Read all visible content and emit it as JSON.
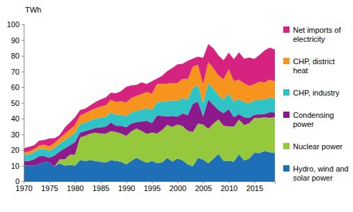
{
  "chart_data": {
    "type": "area",
    "stacked": true,
    "ylabel": "TWh",
    "legend": "right",
    "grid": false,
    "x": [
      1970,
      1971,
      1972,
      1973,
      1974,
      1975,
      1976,
      1977,
      1978,
      1979,
      1980,
      1981,
      1982,
      1983,
      1984,
      1985,
      1986,
      1987,
      1988,
      1989,
      1990,
      1991,
      1992,
      1993,
      1994,
      1995,
      1996,
      1997,
      1998,
      1999,
      2000,
      2001,
      2002,
      2003,
      2004,
      2005,
      2006,
      2007,
      2008,
      2009,
      2010,
      2011,
      2012,
      2013,
      2014,
      2015,
      2016,
      2017,
      2018,
      2019
    ],
    "xlim": [
      1970,
      2019
    ],
    "xticks": [
      1970,
      1975,
      1980,
      1985,
      1990,
      1995,
      2000,
      2005,
      2010,
      2015
    ],
    "ylim": [
      0,
      100
    ],
    "yticks": [
      0,
      10,
      20,
      30,
      40,
      50,
      60,
      70,
      80,
      90,
      100
    ],
    "series": [
      {
        "name": "Hydro, wind and solar power",
        "color": "#1f6fb8",
        "values": [
          10,
          10,
          10,
          11,
          12.5,
          12,
          9.5,
          11.5,
          10,
          10.5,
          10,
          13.5,
          13,
          13.5,
          13,
          12.5,
          12,
          13.5,
          13,
          12.5,
          10.8,
          13,
          15,
          13.3,
          11.8,
          13,
          11.7,
          12,
          15,
          12.6,
          14.6,
          13.3,
          10.8,
          9.6,
          15,
          13.8,
          11.5,
          14.3,
          17.4,
          12.9,
          13.1,
          12.6,
          17.2,
          13.2,
          14.4,
          18.2,
          18,
          19.3,
          18.6,
          18
        ]
      },
      {
        "name": "Nuclear power",
        "color": "#95c83d",
        "values": [
          0,
          0,
          0,
          0,
          0,
          0,
          0,
          2.5,
          4,
          6.5,
          7,
          14.5,
          16,
          17,
          18,
          18,
          18.3,
          18.5,
          18.5,
          18,
          18.1,
          18.9,
          18.7,
          18.8,
          18.4,
          18.1,
          18.7,
          20.7,
          21,
          22.1,
          21.6,
          21.9,
          21.4,
          21.8,
          21.8,
          22.4,
          22,
          22.5,
          22,
          22.6,
          21.9,
          22.3,
          22.1,
          22.7,
          22.6,
          22.3,
          22.3,
          21.6,
          21.9,
          22.9
        ]
      },
      {
        "name": "Condensing power",
        "color": "#8c1a8c",
        "values": [
          3,
          3,
          4,
          5,
          3.5,
          3,
          7,
          5,
          7,
          6,
          8,
          3,
          3,
          2.5,
          3,
          4,
          4.5,
          5.5,
          4,
          5,
          5.5,
          5,
          4,
          6,
          8.5,
          6,
          11.5,
          9,
          5.5,
          7,
          5,
          8,
          10,
          18,
          14,
          5,
          18.5,
          12,
          6,
          8,
          11,
          6,
          3.5,
          5,
          3.5,
          2,
          2.5,
          2,
          3.5,
          3
        ]
      },
      {
        "name": "CHP, industry",
        "color": "#2fc3c6",
        "values": [
          4,
          4.2,
          4.4,
          4.6,
          4.8,
          4.5,
          4.8,
          5,
          5.2,
          5.5,
          5.8,
          5.5,
          5.5,
          5.8,
          6,
          6.2,
          6.2,
          6.5,
          6.8,
          7,
          7,
          7,
          7.2,
          7.5,
          8,
          8.2,
          8.5,
          9,
          9.5,
          9.8,
          10,
          9.8,
          10,
          10.2,
          10.5,
          8.5,
          10.5,
          10.3,
          9.5,
          8.5,
          10,
          10,
          9.5,
          9.5,
          9.3,
          9,
          9.2,
          9.3,
          9.3,
          9
        ]
      },
      {
        "name": "CHP, district heat",
        "color": "#f7941e",
        "values": [
          1.5,
          1.8,
          2,
          2.3,
          2.5,
          2.8,
          3.2,
          3.5,
          4,
          4.5,
          5,
          5.5,
          5.8,
          6.2,
          6.6,
          7,
          7.5,
          8,
          8.3,
          8.5,
          8.8,
          9.2,
          9.5,
          10,
          10.3,
          10.5,
          11.5,
          11.5,
          11.2,
          11.2,
          11.5,
          12.3,
          12.8,
          13.5,
          13.2,
          12,
          13.5,
          13,
          12.5,
          13,
          15.5,
          13,
          12.5,
          12,
          11,
          10.5,
          11.5,
          10.8,
          11.5,
          10.8
        ]
      },
      {
        "name": "Net imports of electricity",
        "color": "#d6237f",
        "values": [
          2.5,
          3,
          2.5,
          3,
          3,
          5,
          3,
          2,
          4,
          4.5,
          5,
          3.5,
          3,
          3.5,
          4,
          4.5,
          5,
          4.5,
          5.5,
          6.5,
          10,
          8,
          7,
          7.5,
          5,
          8,
          3.5,
          5,
          8,
          9.5,
          11.9,
          9.6,
          11.8,
          5.1,
          4.9,
          17,
          11.4,
          12.7,
          12.8,
          12.1,
          10.5,
          13.9,
          17.4,
          15.7,
          18.1,
          16,
          17.1,
          20.4,
          20.4,
          20.3
        ]
      }
    ]
  }
}
